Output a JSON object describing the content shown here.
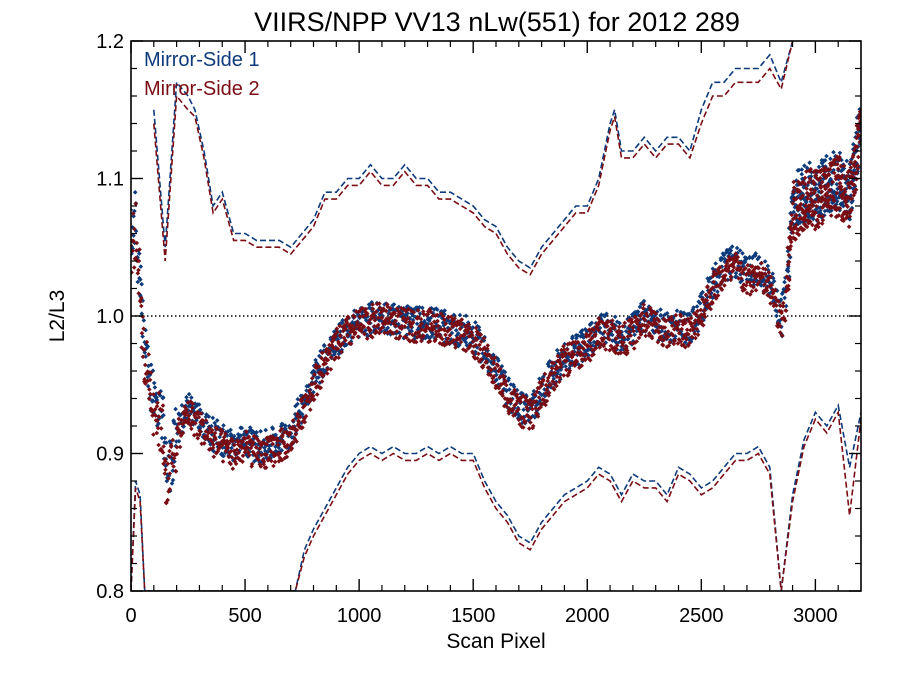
{
  "chart_data": {
    "type": "scatter",
    "title": "VIIRS/NPP VV13 nLw(551) for 2012 289",
    "xlabel": "Scan Pixel",
    "ylabel": "L2/L3",
    "xlim": [
      0,
      3200
    ],
    "ylim": [
      0.8,
      1.2
    ],
    "xticks": [
      "0",
      "500",
      "1000",
      "1500",
      "2000",
      "2500",
      "3000"
    ],
    "yticks": [
      "0.8",
      "0.9",
      "1.0",
      "1.1",
      "1.2"
    ],
    "reference_line": {
      "y": 1.0,
      "style": "dotted"
    },
    "legend_position": "top-left",
    "series": [
      {
        "name": "Mirror-Side 1",
        "color": "#0d3a7a",
        "mean_x": [
          0,
          20,
          40,
          60,
          80,
          100,
          140,
          160,
          200,
          250,
          300,
          350,
          400,
          450,
          500,
          550,
          600,
          650,
          700,
          750,
          800,
          850,
          900,
          950,
          1000,
          1050,
          1100,
          1150,
          1200,
          1250,
          1300,
          1350,
          1400,
          1450,
          1500,
          1550,
          1600,
          1650,
          1700,
          1750,
          1800,
          1850,
          1900,
          1950,
          2000,
          2050,
          2100,
          2150,
          2200,
          2250,
          2300,
          2350,
          2400,
          2450,
          2500,
          2550,
          2600,
          2650,
          2700,
          2750,
          2800,
          2850,
          2870,
          2900,
          2950,
          3000,
          3050,
          3100,
          3150,
          3200
        ],
        "mean_y": [
          1.06,
          1.07,
          1.03,
          0.97,
          0.96,
          0.94,
          0.92,
          0.88,
          0.915,
          0.935,
          0.925,
          0.915,
          0.91,
          0.905,
          0.91,
          0.905,
          0.905,
          0.91,
          0.915,
          0.935,
          0.955,
          0.97,
          0.98,
          0.99,
          0.995,
          0.998,
          1.0,
          0.998,
          0.995,
          0.995,
          0.995,
          0.994,
          0.99,
          0.99,
          0.985,
          0.975,
          0.96,
          0.945,
          0.935,
          0.93,
          0.945,
          0.96,
          0.97,
          0.975,
          0.98,
          0.99,
          0.99,
          0.985,
          0.99,
          1.0,
          0.995,
          0.99,
          0.995,
          0.99,
          1.005,
          1.025,
          1.035,
          1.04,
          1.03,
          1.035,
          1.025,
          1.0,
          1.01,
          1.08,
          1.09,
          1.09,
          1.095,
          1.1,
          1.09,
          1.14
        ],
        "upper_x": [
          100,
          150,
          200,
          250,
          280,
          320,
          360,
          400,
          450,
          500,
          550,
          600,
          650,
          700,
          750,
          800,
          850,
          900,
          950,
          1000,
          1050,
          1100,
          1150,
          1200,
          1250,
          1300,
          1350,
          1400,
          1450,
          1500,
          1550,
          1600,
          1650,
          1700,
          1750,
          1800,
          1850,
          1900,
          1950,
          2000,
          2050,
          2100,
          2120,
          2150,
          2200,
          2250,
          2300,
          2350,
          2400,
          2450,
          2500,
          2550,
          2600,
          2650,
          2700,
          2750,
          2800,
          2850,
          2900
        ],
        "upper_y": [
          1.15,
          1.05,
          1.17,
          1.16,
          1.15,
          1.12,
          1.08,
          1.09,
          1.06,
          1.06,
          1.055,
          1.055,
          1.055,
          1.05,
          1.06,
          1.07,
          1.09,
          1.09,
          1.1,
          1.1,
          1.11,
          1.1,
          1.1,
          1.11,
          1.1,
          1.1,
          1.09,
          1.09,
          1.085,
          1.08,
          1.07,
          1.065,
          1.05,
          1.04,
          1.035,
          1.05,
          1.06,
          1.07,
          1.08,
          1.08,
          1.1,
          1.14,
          1.15,
          1.12,
          1.12,
          1.13,
          1.12,
          1.13,
          1.13,
          1.12,
          1.15,
          1.17,
          1.17,
          1.18,
          1.18,
          1.18,
          1.19,
          1.17,
          1.2
        ],
        "lower_x": [
          0,
          20,
          40,
          60,
          580,
          600,
          650,
          700,
          720,
          760,
          800,
          850,
          900,
          950,
          1000,
          1050,
          1100,
          1150,
          1200,
          1250,
          1300,
          1350,
          1400,
          1450,
          1500,
          1550,
          1600,
          1650,
          1700,
          1750,
          1800,
          1850,
          1900,
          1950,
          2000,
          2050,
          2100,
          2150,
          2200,
          2250,
          2300,
          2350,
          2400,
          2450,
          2500,
          2550,
          2600,
          2650,
          2700,
          2750,
          2800,
          2850,
          2900,
          2950,
          3000,
          3050,
          3100,
          3150,
          3200
        ],
        "lower_y": [
          0.8,
          0.88,
          0.87,
          0.8,
          0.8,
          0.8,
          0.8,
          0.8,
          0.8,
          0.83,
          0.845,
          0.86,
          0.875,
          0.89,
          0.9,
          0.905,
          0.9,
          0.905,
          0.9,
          0.9,
          0.905,
          0.9,
          0.905,
          0.9,
          0.9,
          0.88,
          0.865,
          0.855,
          0.84,
          0.835,
          0.85,
          0.86,
          0.87,
          0.875,
          0.88,
          0.89,
          0.885,
          0.87,
          0.885,
          0.88,
          0.88,
          0.87,
          0.89,
          0.885,
          0.875,
          0.88,
          0.89,
          0.9,
          0.9,
          0.905,
          0.89,
          0.8,
          0.87,
          0.91,
          0.93,
          0.92,
          0.935,
          0.89,
          0.93
        ]
      },
      {
        "name": "Mirror-Side 2",
        "color": "#7a0d14",
        "mean_x": [
          0,
          20,
          40,
          60,
          80,
          100,
          140,
          160,
          200,
          250,
          300,
          350,
          400,
          450,
          500,
          550,
          600,
          650,
          700,
          750,
          800,
          850,
          900,
          950,
          1000,
          1050,
          1100,
          1150,
          1200,
          1250,
          1300,
          1350,
          1400,
          1450,
          1500,
          1550,
          1600,
          1650,
          1700,
          1750,
          1800,
          1850,
          1900,
          1950,
          2000,
          2050,
          2100,
          2150,
          2200,
          2250,
          2300,
          2350,
          2400,
          2450,
          2500,
          2550,
          2600,
          2650,
          2700,
          2750,
          2800,
          2850,
          2870,
          2900,
          2950,
          3000,
          3050,
          3100,
          3150,
          3200
        ],
        "mean_y": [
          1.05,
          1.06,
          1.02,
          0.965,
          0.955,
          0.935,
          0.915,
          0.875,
          0.91,
          0.93,
          0.92,
          0.91,
          0.905,
          0.9,
          0.905,
          0.9,
          0.9,
          0.905,
          0.91,
          0.93,
          0.95,
          0.965,
          0.978,
          0.988,
          0.993,
          0.996,
          0.998,
          0.996,
          0.993,
          0.993,
          0.993,
          0.992,
          0.988,
          0.988,
          0.982,
          0.972,
          0.957,
          0.942,
          0.932,
          0.927,
          0.942,
          0.957,
          0.967,
          0.972,
          0.977,
          0.987,
          0.987,
          0.982,
          0.987,
          0.997,
          0.992,
          0.987,
          0.992,
          0.987,
          1.002,
          1.02,
          1.03,
          1.035,
          1.025,
          1.03,
          1.02,
          0.995,
          1.005,
          1.075,
          1.085,
          1.085,
          1.09,
          1.095,
          1.085,
          1.135
        ],
        "upper_x": [
          100,
          150,
          200,
          250,
          280,
          320,
          360,
          400,
          450,
          500,
          550,
          600,
          650,
          700,
          750,
          800,
          850,
          900,
          950,
          1000,
          1050,
          1100,
          1150,
          1200,
          1250,
          1300,
          1350,
          1400,
          1450,
          1500,
          1550,
          1600,
          1650,
          1700,
          1750,
          1800,
          1850,
          1900,
          1950,
          2000,
          2050,
          2100,
          2120,
          2150,
          2200,
          2250,
          2300,
          2350,
          2400,
          2450,
          2500,
          2550,
          2600,
          2650,
          2700,
          2750,
          2800,
          2850,
          2900
        ],
        "upper_y": [
          1.14,
          1.04,
          1.16,
          1.15,
          1.145,
          1.115,
          1.075,
          1.085,
          1.055,
          1.055,
          1.05,
          1.05,
          1.05,
          1.045,
          1.055,
          1.065,
          1.085,
          1.085,
          1.095,
          1.095,
          1.105,
          1.095,
          1.095,
          1.105,
          1.095,
          1.095,
          1.085,
          1.085,
          1.08,
          1.075,
          1.065,
          1.06,
          1.045,
          1.035,
          1.03,
          1.045,
          1.055,
          1.065,
          1.075,
          1.075,
          1.095,
          1.135,
          1.145,
          1.115,
          1.115,
          1.125,
          1.115,
          1.125,
          1.125,
          1.115,
          1.14,
          1.16,
          1.16,
          1.17,
          1.17,
          1.17,
          1.18,
          1.165,
          1.2
        ],
        "lower_x": [
          0,
          20,
          40,
          60,
          580,
          600,
          650,
          700,
          720,
          760,
          800,
          850,
          900,
          950,
          1000,
          1050,
          1100,
          1150,
          1200,
          1250,
          1300,
          1350,
          1400,
          1450,
          1500,
          1550,
          1600,
          1650,
          1700,
          1750,
          1800,
          1850,
          1900,
          1950,
          2000,
          2050,
          2100,
          2150,
          2200,
          2250,
          2300,
          2350,
          2400,
          2450,
          2500,
          2550,
          2600,
          2650,
          2700,
          2750,
          2800,
          2850,
          2900,
          2950,
          3000,
          3050,
          3100,
          3150,
          3200
        ],
        "lower_y": [
          0.8,
          0.875,
          0.865,
          0.8,
          0.8,
          0.8,
          0.8,
          0.8,
          0.8,
          0.825,
          0.84,
          0.855,
          0.87,
          0.885,
          0.895,
          0.9,
          0.895,
          0.9,
          0.895,
          0.895,
          0.9,
          0.895,
          0.9,
          0.895,
          0.895,
          0.875,
          0.86,
          0.85,
          0.835,
          0.83,
          0.845,
          0.855,
          0.865,
          0.87,
          0.875,
          0.885,
          0.88,
          0.865,
          0.88,
          0.875,
          0.875,
          0.865,
          0.885,
          0.88,
          0.87,
          0.875,
          0.885,
          0.895,
          0.895,
          0.9,
          0.885,
          0.8,
          0.865,
          0.905,
          0.925,
          0.915,
          0.93,
          0.855,
          0.925
        ]
      }
    ]
  }
}
